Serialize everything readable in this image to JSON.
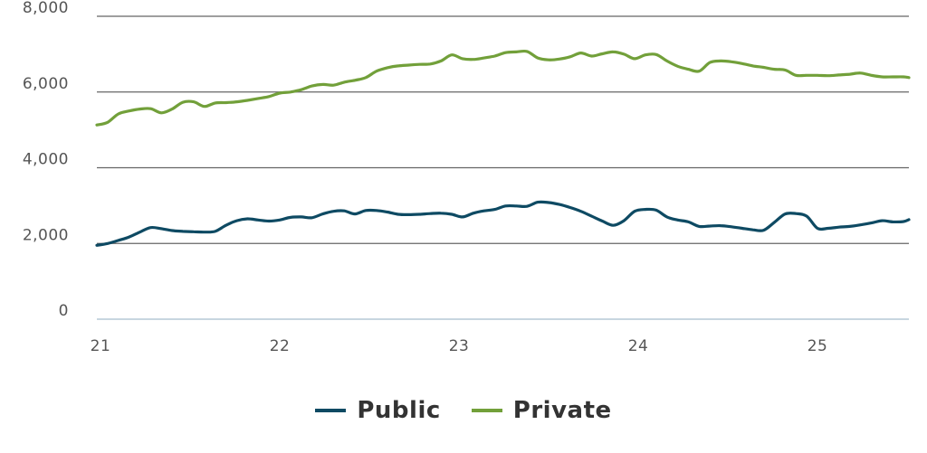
{
  "chart_data": {
    "type": "line",
    "title": "",
    "xlabel": "",
    "ylabel": "",
    "xlim": [
      21,
      25.53
    ],
    "ylim": [
      0,
      8000
    ],
    "x_ticks": [
      21,
      22,
      23,
      24,
      25
    ],
    "x_tick_labels": [
      "21",
      "22",
      "23",
      "24",
      "25"
    ],
    "y_ticks": [
      0,
      2000,
      4000,
      6000,
      8000
    ],
    "y_tick_labels": [
      "0",
      "2,000",
      "4,000",
      "6,000",
      "8,000"
    ],
    "grid": "horizontal",
    "legend_position": "bottom-center",
    "colors": {
      "grid": "#666666",
      "axis": "#c8d6e0"
    },
    "series": [
      {
        "name": "Public",
        "color": "#0e4a63",
        "x": [
          21.0,
          21.06,
          21.12,
          21.18,
          21.24,
          21.3,
          21.36,
          21.42,
          21.48,
          21.54,
          21.6,
          21.66,
          21.72,
          21.78,
          21.84,
          21.9,
          21.96,
          22.02,
          22.08,
          22.14,
          22.2,
          22.26,
          22.32,
          22.38,
          22.44,
          22.5,
          22.56,
          22.62,
          22.68,
          22.74,
          22.8,
          22.86,
          22.92,
          22.98,
          23.04,
          23.1,
          23.16,
          23.22,
          23.28,
          23.34,
          23.4,
          23.46,
          23.52,
          23.58,
          23.64,
          23.7,
          23.76,
          23.82,
          23.88,
          23.94,
          24.0,
          24.06,
          24.12,
          24.18,
          24.24,
          24.3,
          24.36,
          24.42,
          24.48,
          24.54,
          24.6,
          24.66,
          24.72,
          24.78,
          24.84,
          24.9,
          24.96,
          25.02,
          25.08,
          25.14,
          25.2,
          25.26,
          25.32,
          25.38,
          25.44,
          25.5,
          25.53
        ],
        "values": [
          1950,
          2000,
          2080,
          2170,
          2300,
          2420,
          2390,
          2340,
          2320,
          2310,
          2300,
          2320,
          2480,
          2600,
          2650,
          2620,
          2590,
          2620,
          2690,
          2700,
          2680,
          2780,
          2850,
          2860,
          2780,
          2870,
          2870,
          2830,
          2770,
          2760,
          2770,
          2790,
          2800,
          2770,
          2700,
          2800,
          2860,
          2900,
          2990,
          2990,
          2980,
          3090,
          3080,
          3030,
          2950,
          2850,
          2720,
          2590,
          2480,
          2600,
          2850,
          2900,
          2880,
          2700,
          2620,
          2570,
          2450,
          2460,
          2470,
          2440,
          2400,
          2360,
          2350,
          2560,
          2780,
          2790,
          2720,
          2400,
          2400,
          2430,
          2450,
          2490,
          2540,
          2600,
          2570,
          2580,
          2630
        ]
      },
      {
        "name": "Private",
        "color": "#72a03a",
        "x": [
          21.0,
          21.06,
          21.12,
          21.18,
          21.24,
          21.3,
          21.36,
          21.42,
          21.48,
          21.54,
          21.6,
          21.66,
          21.72,
          21.78,
          21.84,
          21.9,
          21.96,
          22.02,
          22.08,
          22.14,
          22.2,
          22.26,
          22.32,
          22.38,
          22.44,
          22.5,
          22.56,
          22.62,
          22.68,
          22.74,
          22.8,
          22.86,
          22.92,
          22.98,
          23.04,
          23.1,
          23.16,
          23.22,
          23.28,
          23.34,
          23.4,
          23.46,
          23.52,
          23.58,
          23.64,
          23.7,
          23.76,
          23.82,
          23.88,
          23.94,
          24.0,
          24.06,
          24.12,
          24.18,
          24.24,
          24.3,
          24.36,
          24.42,
          24.48,
          24.54,
          24.6,
          24.66,
          24.72,
          24.78,
          24.84,
          24.9,
          24.96,
          25.02,
          25.08,
          25.14,
          25.2,
          25.26,
          25.32,
          25.38,
          25.44,
          25.5,
          25.53
        ],
        "values": [
          5130,
          5200,
          5420,
          5500,
          5550,
          5560,
          5450,
          5550,
          5730,
          5740,
          5620,
          5710,
          5720,
          5740,
          5780,
          5830,
          5880,
          5970,
          6000,
          6060,
          6160,
          6200,
          6180,
          6260,
          6310,
          6380,
          6550,
          6640,
          6690,
          6710,
          6730,
          6740,
          6820,
          6980,
          6880,
          6860,
          6900,
          6950,
          7040,
          7060,
          7070,
          6900,
          6850,
          6870,
          6930,
          7030,
          6950,
          7010,
          7060,
          7000,
          6880,
          6980,
          6990,
          6820,
          6680,
          6600,
          6550,
          6780,
          6820,
          6800,
          6750,
          6690,
          6650,
          6600,
          6580,
          6440,
          6440,
          6440,
          6430,
          6450,
          6470,
          6500,
          6440,
          6400,
          6400,
          6400,
          6380
        ]
      }
    ]
  }
}
